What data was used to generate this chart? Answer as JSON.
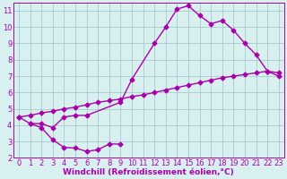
{
  "line1_x": [
    0,
    1,
    2,
    3,
    4,
    5,
    6,
    9,
    10,
    12,
    13,
    14,
    15,
    16,
    17,
    18,
    19,
    20,
    21,
    22,
    23
  ],
  "line1_y": [
    4.5,
    4.1,
    4.1,
    3.85,
    4.5,
    4.6,
    4.6,
    5.4,
    6.8,
    9.0,
    10.0,
    11.1,
    11.3,
    10.7,
    10.2,
    10.4,
    9.8,
    9.0,
    8.3,
    7.3,
    7.0
  ],
  "line2_x": [
    1,
    2,
    3,
    4,
    5,
    6,
    7,
    8,
    9
  ],
  "line2_y": [
    4.1,
    3.85,
    3.1,
    2.65,
    2.6,
    2.4,
    2.5,
    2.85,
    2.85
  ],
  "line3_x": [
    0,
    1,
    2,
    3,
    4,
    5,
    6,
    7,
    8,
    9,
    10,
    11,
    12,
    13,
    14,
    15,
    16,
    17,
    18,
    19,
    20,
    21,
    22,
    23
  ],
  "line3_y": [
    4.5,
    4.6,
    4.75,
    4.85,
    5.0,
    5.1,
    5.25,
    5.4,
    5.5,
    5.6,
    5.75,
    5.85,
    6.0,
    6.15,
    6.3,
    6.45,
    6.6,
    6.75,
    6.9,
    7.0,
    7.1,
    7.2,
    7.3,
    7.2
  ],
  "color": "#aa00aa",
  "bg_color": "#d8f0f0",
  "grid_color": "#a8cccc",
  "xlabel": "Windchill (Refroidissement éolien,°C)",
  "xlim": [
    -0.5,
    23.5
  ],
  "ylim": [
    2,
    11.5
  ],
  "xticks": [
    0,
    1,
    2,
    3,
    4,
    5,
    6,
    7,
    8,
    9,
    10,
    11,
    12,
    13,
    14,
    15,
    16,
    17,
    18,
    19,
    20,
    21,
    22,
    23
  ],
  "yticks": [
    2,
    3,
    4,
    5,
    6,
    7,
    8,
    9,
    10,
    11
  ],
  "marker": "D",
  "markersize": 2.5,
  "linewidth": 1.0,
  "xlabel_fontsize": 6.5,
  "tick_fontsize": 6.0,
  "xlabel_color": "#aa00aa",
  "tick_color": "#aa00aa"
}
